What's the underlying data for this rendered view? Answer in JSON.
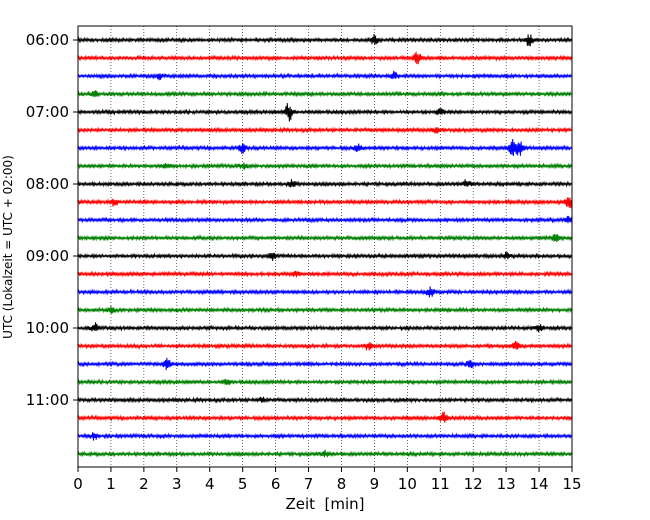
{
  "chart_data": {
    "type": "line",
    "title": "",
    "xlabel": "Zeit  [min]",
    "ylabel": "UTC (Lokalzeit = UTC + 02:00)",
    "xlim": [
      0,
      15
    ],
    "x_ticks": [
      "0",
      "1",
      "2",
      "3",
      "4",
      "5",
      "6",
      "7",
      "8",
      "9",
      "10",
      "11",
      "12",
      "13",
      "14",
      "15"
    ],
    "y_tick_labels": [
      "06:00",
      "07:00",
      "08:00",
      "09:00",
      "10:00",
      "11:00"
    ],
    "traces_per_hour": 4,
    "trace_colors": [
      "#000000",
      "#ff0000",
      "#0000ff",
      "#008000"
    ],
    "grid": "vertical dotted lines at each minute",
    "traces": [
      {
        "start": "06:00",
        "events": [
          {
            "t": 9.0,
            "a": 0.5
          },
          {
            "t": 13.7,
            "a": 0.6
          }
        ]
      },
      {
        "start": "06:15",
        "events": [
          {
            "t": 10.3,
            "a": 0.6
          }
        ]
      },
      {
        "start": "06:30",
        "events": [
          {
            "t": 2.5,
            "a": 0.4
          },
          {
            "t": 9.6,
            "a": 0.4
          }
        ]
      },
      {
        "start": "06:45",
        "events": [
          {
            "t": 0.5,
            "a": 0.4
          }
        ]
      },
      {
        "start": "07:00",
        "events": [
          {
            "t": 6.4,
            "a": 1.0
          },
          {
            "t": 11.0,
            "a": 0.4
          }
        ]
      },
      {
        "start": "07:15",
        "events": [
          {
            "t": 10.9,
            "a": 0.4
          }
        ]
      },
      {
        "start": "07:30",
        "events": [
          {
            "t": 5.0,
            "a": 0.5
          },
          {
            "t": 8.5,
            "a": 0.4
          },
          {
            "t": 13.2,
            "a": 0.9
          },
          {
            "t": 13.4,
            "a": 0.9
          }
        ]
      },
      {
        "start": "07:45",
        "events": [
          {
            "t": 2.7,
            "a": 0.3
          },
          {
            "t": 5.0,
            "a": 0.3
          }
        ]
      },
      {
        "start": "08:00",
        "events": [
          {
            "t": 6.5,
            "a": 0.4
          },
          {
            "t": 11.8,
            "a": 0.4
          }
        ]
      },
      {
        "start": "08:15",
        "events": [
          {
            "t": 1.1,
            "a": 0.4
          },
          {
            "t": 14.9,
            "a": 0.8
          }
        ]
      },
      {
        "start": "08:30",
        "events": [
          {
            "t": 14.9,
            "a": 0.4
          }
        ]
      },
      {
        "start": "08:45",
        "events": [
          {
            "t": 14.5,
            "a": 0.4
          }
        ]
      },
      {
        "start": "09:00",
        "events": [
          {
            "t": 5.9,
            "a": 0.4
          },
          {
            "t": 13.0,
            "a": 0.3
          }
        ]
      },
      {
        "start": "09:15",
        "events": [
          {
            "t": 6.6,
            "a": 0.3
          }
        ]
      },
      {
        "start": "09:30",
        "events": [
          {
            "t": 10.7,
            "a": 0.5
          }
        ]
      },
      {
        "start": "09:45",
        "events": [
          {
            "t": 1.0,
            "a": 0.3
          }
        ]
      },
      {
        "start": "10:00",
        "events": [
          {
            "t": 0.5,
            "a": 0.5
          },
          {
            "t": 14.0,
            "a": 0.4
          }
        ]
      },
      {
        "start": "10:15",
        "events": [
          {
            "t": 8.8,
            "a": 0.4
          },
          {
            "t": 13.3,
            "a": 0.4
          }
        ]
      },
      {
        "start": "10:30",
        "events": [
          {
            "t": 2.7,
            "a": 0.6
          },
          {
            "t": 11.9,
            "a": 0.6
          }
        ]
      },
      {
        "start": "10:45",
        "events": [
          {
            "t": 4.5,
            "a": 0.3
          }
        ]
      },
      {
        "start": "11:00",
        "events": [
          {
            "t": 5.6,
            "a": 0.3
          }
        ]
      },
      {
        "start": "11:15",
        "events": [
          {
            "t": 11.1,
            "a": 0.6
          }
        ]
      },
      {
        "start": "11:30",
        "events": [
          {
            "t": 0.5,
            "a": 0.4
          }
        ]
      },
      {
        "start": "11:45",
        "events": [
          {
            "t": 7.5,
            "a": 0.3
          }
        ]
      }
    ]
  }
}
